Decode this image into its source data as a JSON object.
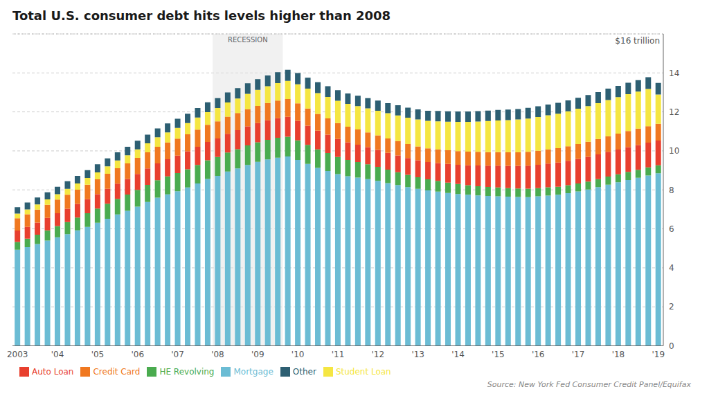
{
  "chart_data": {
    "type": "bar",
    "stacked": true,
    "title": "Total U.S. consumer debt hits levels higher than 2008",
    "source": "Source: New York Fed Consumer Credit Panel/Equifax",
    "categories": [
      "2003",
      null,
      null,
      null,
      "'04",
      null,
      null,
      null,
      "'05",
      null,
      null,
      null,
      "'06",
      null,
      null,
      null,
      "'07",
      null,
      null,
      null,
      "'08",
      null,
      null,
      null,
      "'09",
      null,
      null,
      null,
      "'10",
      null,
      null,
      null,
      "'11",
      null,
      null,
      null,
      "'12",
      null,
      null,
      null,
      "'13",
      null,
      null,
      null,
      "'14",
      null,
      null,
      null,
      "'15",
      null,
      null,
      null,
      "'16",
      null,
      null,
      null,
      "'17",
      null,
      null,
      null,
      "'18",
      null,
      null,
      null,
      "'19"
    ],
    "series": [
      {
        "name": "Mortgage",
        "color": "#6bbcd4",
        "values": [
          4.93,
          5.06,
          5.22,
          5.4,
          5.57,
          5.73,
          5.92,
          6.1,
          6.31,
          6.52,
          6.74,
          6.93,
          7.14,
          7.38,
          7.6,
          7.77,
          7.93,
          8.12,
          8.33,
          8.56,
          8.72,
          8.94,
          9.1,
          9.28,
          9.44,
          9.56,
          9.65,
          9.71,
          9.54,
          9.33,
          9.13,
          8.97,
          8.81,
          8.7,
          8.63,
          8.55,
          8.46,
          8.35,
          8.25,
          8.14,
          8.05,
          7.97,
          7.91,
          7.84,
          7.79,
          7.75,
          7.72,
          7.69,
          7.67,
          7.65,
          7.64,
          7.63,
          7.67,
          7.71,
          7.75,
          7.83,
          7.92,
          8.02,
          8.14,
          8.27,
          8.39,
          8.51,
          8.62,
          8.74,
          8.85
        ]
      },
      {
        "name": "HE Revolving",
        "color": "#4aab4f",
        "values": [
          0.4,
          0.44,
          0.48,
          0.52,
          0.57,
          0.62,
          0.66,
          0.7,
          0.73,
          0.77,
          0.8,
          0.83,
          0.86,
          0.88,
          0.9,
          0.92,
          0.93,
          0.94,
          0.95,
          0.96,
          0.97,
          0.98,
          0.99,
          1.0,
          1.0,
          1.01,
          1.02,
          1.02,
          1.0,
          0.98,
          0.95,
          0.92,
          0.88,
          0.84,
          0.8,
          0.76,
          0.72,
          0.69,
          0.66,
          0.63,
          0.6,
          0.57,
          0.55,
          0.53,
          0.51,
          0.49,
          0.47,
          0.46,
          0.45,
          0.44,
          0.43,
          0.43,
          0.42,
          0.42,
          0.41,
          0.41,
          0.41,
          0.41,
          0.41,
          0.41,
          0.41,
          0.41,
          0.41,
          0.41,
          0.41
        ]
      },
      {
        "name": "Auto Loan",
        "color": "#e83f2e",
        "values": [
          0.58,
          0.6,
          0.62,
          0.64,
          0.66,
          0.68,
          0.7,
          0.72,
          0.74,
          0.76,
          0.78,
          0.8,
          0.82,
          0.84,
          0.86,
          0.88,
          0.9,
          0.92,
          0.93,
          0.94,
          0.95,
          0.96,
          0.97,
          0.98,
          0.99,
          1.0,
          1.01,
          1.02,
          1.0,
          0.98,
          0.96,
          0.94,
          0.92,
          0.9,
          0.89,
          0.88,
          0.87,
          0.86,
          0.86,
          0.86,
          0.87,
          0.89,
          0.92,
          0.96,
          0.99,
          1.02,
          1.06,
          1.09,
          1.12,
          1.14,
          1.16,
          1.18,
          1.2,
          1.22,
          1.24,
          1.25,
          1.26,
          1.27,
          1.27,
          1.27,
          1.27,
          1.27,
          1.27,
          1.27,
          1.27
        ]
      },
      {
        "name": "Credit Card",
        "color": "#f07820",
        "values": [
          0.63,
          0.65,
          0.67,
          0.68,
          0.7,
          0.72,
          0.73,
          0.75,
          0.76,
          0.78,
          0.79,
          0.8,
          0.82,
          0.83,
          0.85,
          0.86,
          0.87,
          0.87,
          0.88,
          0.88,
          0.88,
          0.88,
          0.88,
          0.88,
          0.88,
          0.89,
          0.9,
          0.91,
          0.9,
          0.88,
          0.86,
          0.84,
          0.82,
          0.8,
          0.78,
          0.76,
          0.75,
          0.74,
          0.73,
          0.72,
          0.71,
          0.7,
          0.7,
          0.7,
          0.7,
          0.7,
          0.7,
          0.7,
          0.7,
          0.7,
          0.7,
          0.71,
          0.72,
          0.73,
          0.74,
          0.75,
          0.76,
          0.77,
          0.79,
          0.8,
          0.82,
          0.83,
          0.84,
          0.85,
          0.86
        ]
      },
      {
        "name": "Student Loan",
        "color": "#f5e642",
        "values": [
          0.24,
          0.25,
          0.26,
          0.27,
          0.28,
          0.3,
          0.32,
          0.34,
          0.36,
          0.38,
          0.4,
          0.42,
          0.44,
          0.46,
          0.49,
          0.52,
          0.55,
          0.58,
          0.62,
          0.65,
          0.68,
          0.72,
          0.75,
          0.79,
          0.82,
          0.86,
          0.9,
          0.93,
          0.98,
          1.02,
          1.06,
          1.1,
          1.14,
          1.17,
          1.2,
          1.23,
          1.26,
          1.29,
          1.32,
          1.35,
          1.38,
          1.41,
          1.44,
          1.47,
          1.5,
          1.53,
          1.56,
          1.59,
          1.62,
          1.65,
          1.68,
          1.71,
          1.73,
          1.75,
          1.77,
          1.79,
          1.81,
          1.83,
          1.84,
          1.86,
          1.87,
          1.89,
          1.9,
          1.91,
          1.5
        ]
      },
      {
        "name": "Other",
        "color": "#2d5f72",
        "values": [
          0.33,
          0.35,
          0.36,
          0.37,
          0.38,
          0.39,
          0.39,
          0.4,
          0.41,
          0.41,
          0.42,
          0.43,
          0.44,
          0.44,
          0.45,
          0.46,
          0.47,
          0.48,
          0.49,
          0.5,
          0.51,
          0.52,
          0.53,
          0.54,
          0.55,
          0.55,
          0.56,
          0.57,
          0.57,
          0.56,
          0.56,
          0.55,
          0.54,
          0.54,
          0.53,
          0.53,
          0.52,
          0.52,
          0.52,
          0.52,
          0.52,
          0.52,
          0.53,
          0.53,
          0.53,
          0.53,
          0.53,
          0.54,
          0.54,
          0.54,
          0.54,
          0.55,
          0.55,
          0.55,
          0.56,
          0.56,
          0.56,
          0.57,
          0.57,
          0.58,
          0.58,
          0.59,
          0.59,
          0.6,
          0.6
        ]
      }
    ],
    "ylim": [
      0,
      16
    ],
    "yticks": [
      0,
      2,
      4,
      6,
      8,
      10,
      12,
      14
    ],
    "grid": true,
    "legend": "bottom",
    "shaded_range": {
      "from": 20,
      "to": 26,
      "label": "RECESSION",
      "color": "#e4e4e4"
    },
    "reference_line": {
      "y": 16,
      "label": "$16 trillion"
    }
  }
}
